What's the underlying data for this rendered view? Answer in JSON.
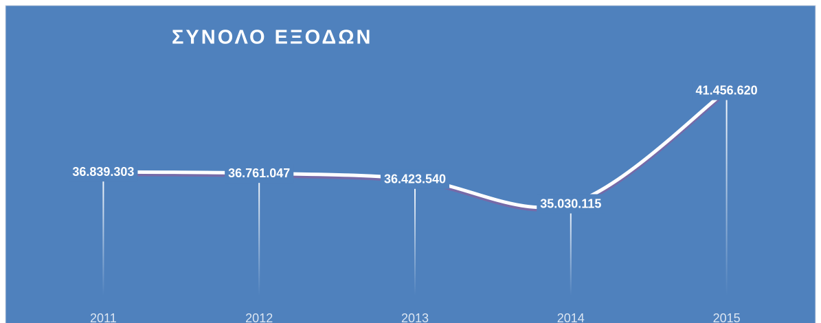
{
  "chart_data": {
    "type": "line",
    "title": "ΣΥΝΟΛΟ ΕΞΟΔΩΝ",
    "categories": [
      "2011",
      "2012",
      "2013",
      "2014",
      "2015"
    ],
    "values": [
      36839303,
      36761047,
      36423540,
      35030115,
      41456620
    ],
    "value_labels": [
      "36.839.303",
      "36.761.047",
      "36.423.540",
      "35.030.115",
      "41.456.620"
    ],
    "color": "#ffffff",
    "background": "#4f81bd",
    "smooth": true,
    "drop_lines": true,
    "ylim": [
      28000000,
      46000000
    ]
  }
}
